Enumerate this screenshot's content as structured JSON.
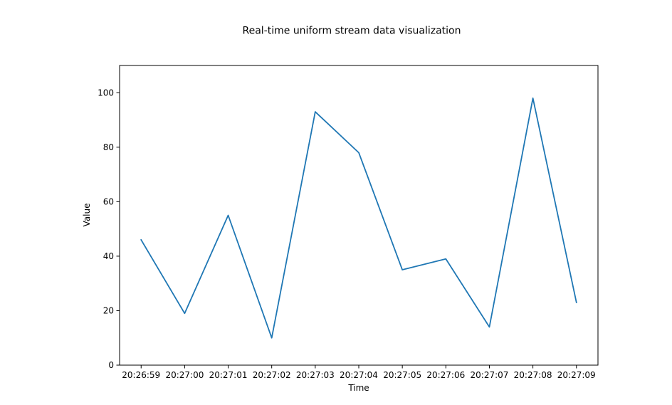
{
  "chart_data": {
    "type": "line",
    "title": "Real-time uniform stream data visualization",
    "xlabel": "Time",
    "ylabel": "Value",
    "x": [
      "20:26:59",
      "20:27:00",
      "20:27:01",
      "20:27:02",
      "20:27:03",
      "20:27:04",
      "20:27:05",
      "20:27:06",
      "20:27:07",
      "20:27:08",
      "20:27:09"
    ],
    "series": [
      {
        "values": [
          46,
          19,
          55,
          10,
          93,
          78,
          35,
          39,
          14,
          98,
          23
        ],
        "color": "#1f77b4"
      }
    ],
    "ylim": [
      0,
      110
    ],
    "yticks": [
      0,
      20,
      40,
      60,
      80,
      100
    ],
    "grid": false,
    "legend": "none"
  }
}
